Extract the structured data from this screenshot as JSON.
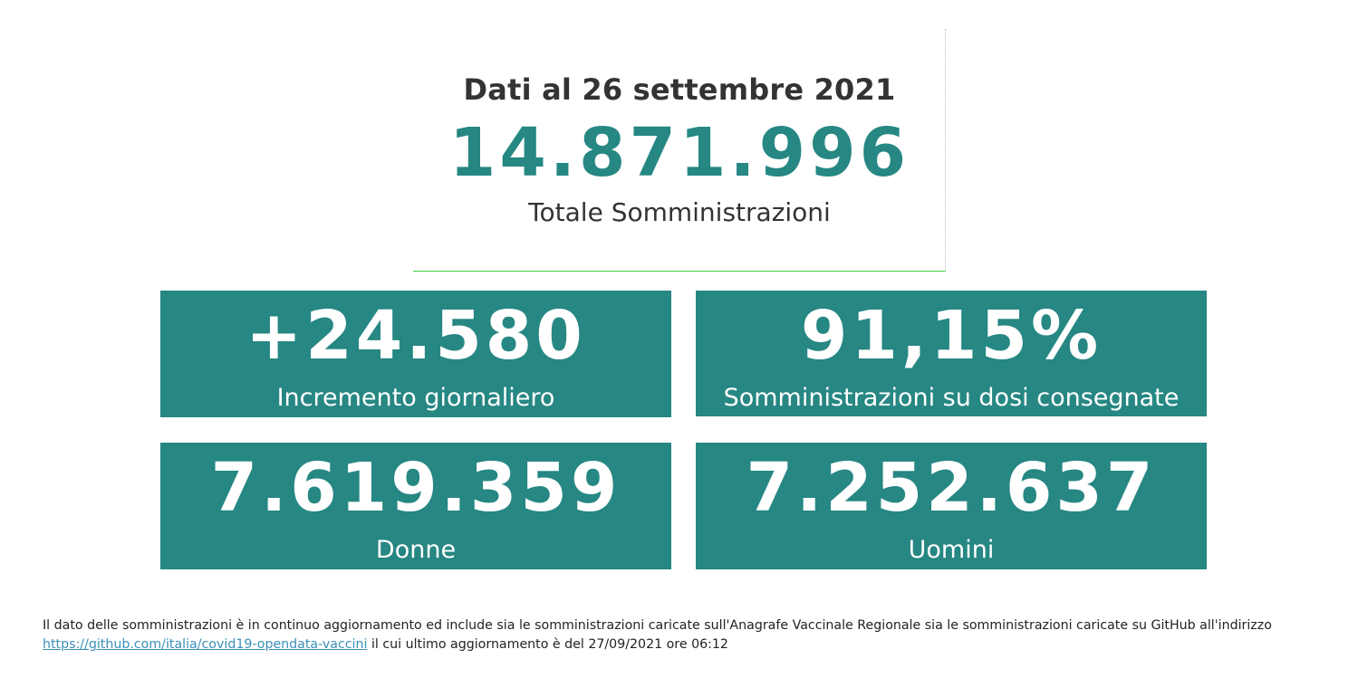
{
  "header": {
    "date_title": "Dati al 26 settembre 2021",
    "total_value": "14.871.996",
    "total_label": "Totale Somministrazioni"
  },
  "tiles": [
    {
      "value": "+24.580",
      "label": "Incremento giornaliero"
    },
    {
      "value": "91,15%",
      "label": "Somministrazioni su dosi consegnate"
    },
    {
      "value": "7.619.359",
      "label": "Donne"
    },
    {
      "value": "7.252.637",
      "label": "Uomini"
    }
  ],
  "footer": {
    "text_before": "Il dato delle somministrazioni è in continuo aggiornamento ed include sia le somministrazioni caricate sull'Anagrafe Vaccinale Regionale sia le somministrazioni caricate su GitHub all'indirizzo",
    "link_text": "https://github.com/italia/covid19-opendata-vaccini",
    "text_after": " il cui ultimo aggiornamento è del 27/09/2021 ore 06:12"
  },
  "colors": {
    "accent": "#268783",
    "text": "#333333",
    "link": "#3a8fb8",
    "divider": "#3fd13f"
  }
}
